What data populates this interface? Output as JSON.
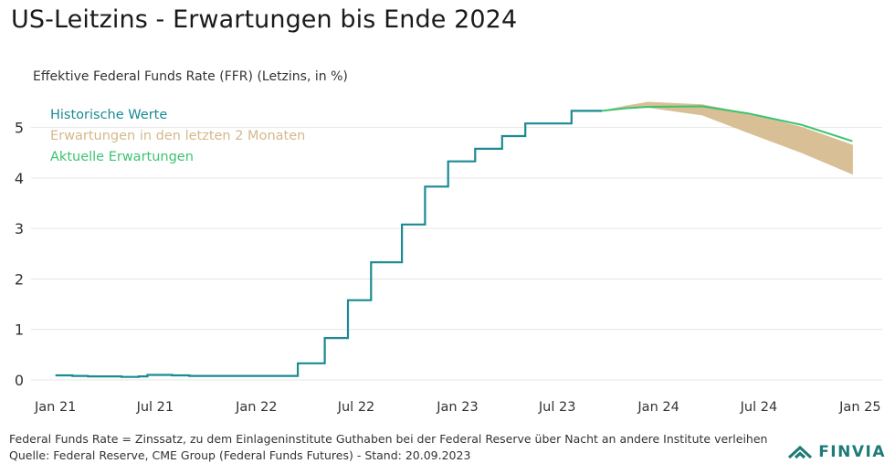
{
  "title": "US-Leitzins - Erwartungen bis Ende 2024",
  "colors": {
    "historical": "#1a8a93",
    "past_expectations": "#d4b98a",
    "current_expectations": "#3cc470",
    "grid": "#e6e6e6",
    "axis_text": "#333333",
    "logo": "#1f7a7a"
  },
  "chart_data": {
    "type": "line",
    "title": "US-Leitzins - Erwartungen bis Ende 2024",
    "ylabel": "Effektive Federal Funds Rate (FFR) (Letzins, in %)",
    "xlabel": "",
    "ylim": [
      0,
      5.5
    ],
    "xlim": [
      "2020-12-01",
      "2025-02-10"
    ],
    "yticks": [
      0,
      1,
      2,
      3,
      4,
      5
    ],
    "xticks": [
      {
        "date": "2021-01-01",
        "label": "Jan 21"
      },
      {
        "date": "2021-07-01",
        "label": "Jul 21"
      },
      {
        "date": "2022-01-01",
        "label": "Jan 22"
      },
      {
        "date": "2022-07-01",
        "label": "Jul 22"
      },
      {
        "date": "2023-01-01",
        "label": "Jan 23"
      },
      {
        "date": "2023-07-01",
        "label": "Jul 23"
      },
      {
        "date": "2024-01-01",
        "label": "Jan 24"
      },
      {
        "date": "2024-07-01",
        "label": "Jul 24"
      },
      {
        "date": "2025-01-01",
        "label": "Jan 25"
      }
    ],
    "grid": true,
    "legend_position": "top-left",
    "series": [
      {
        "name": "Historische Werte",
        "step": true,
        "points": [
          [
            "2021-01-01",
            0.09
          ],
          [
            "2021-02-01",
            0.08
          ],
          [
            "2021-03-01",
            0.07
          ],
          [
            "2021-04-01",
            0.07
          ],
          [
            "2021-05-01",
            0.06
          ],
          [
            "2021-06-01",
            0.07
          ],
          [
            "2021-06-17",
            0.1
          ],
          [
            "2021-08-01",
            0.09
          ],
          [
            "2021-09-01",
            0.08
          ],
          [
            "2021-10-01",
            0.08
          ],
          [
            "2021-11-01",
            0.08
          ],
          [
            "2021-12-01",
            0.08
          ],
          [
            "2022-01-01",
            0.08
          ],
          [
            "2022-02-01",
            0.08
          ],
          [
            "2022-03-17",
            0.33
          ],
          [
            "2022-05-05",
            0.83
          ],
          [
            "2022-06-16",
            1.58
          ],
          [
            "2022-07-28",
            2.33
          ],
          [
            "2022-09-22",
            3.08
          ],
          [
            "2022-11-03",
            3.83
          ],
          [
            "2022-12-15",
            4.33
          ],
          [
            "2023-02-02",
            4.58
          ],
          [
            "2023-03-23",
            4.83
          ],
          [
            "2023-05-04",
            5.08
          ],
          [
            "2023-07-27",
            5.33
          ],
          [
            "2023-09-20",
            5.33
          ]
        ]
      },
      {
        "name": "Erwartungen in den letzten 2 Monaten",
        "points_min": [
          [
            "2023-09-20",
            5.33
          ],
          [
            "2023-11-01",
            5.38
          ],
          [
            "2023-12-13",
            5.4
          ],
          [
            "2024-03-20",
            5.25
          ],
          [
            "2024-06-12",
            4.9
          ],
          [
            "2024-09-18",
            4.5
          ],
          [
            "2024-12-18",
            4.08
          ]
        ],
        "points_max": [
          [
            "2023-09-20",
            5.33
          ],
          [
            "2023-11-01",
            5.42
          ],
          [
            "2023-12-13",
            5.5
          ],
          [
            "2024-03-20",
            5.45
          ],
          [
            "2024-06-12",
            5.28
          ],
          [
            "2024-09-18",
            5.0
          ],
          [
            "2024-12-18",
            4.65
          ]
        ]
      },
      {
        "name": "Aktuelle Erwartungen",
        "points": [
          [
            "2023-09-20",
            5.33
          ],
          [
            "2023-11-01",
            5.38
          ],
          [
            "2023-12-13",
            5.41
          ],
          [
            "2024-03-20",
            5.42
          ],
          [
            "2024-06-12",
            5.28
          ],
          [
            "2024-09-18",
            5.05
          ],
          [
            "2024-12-18",
            4.73
          ]
        ]
      }
    ]
  },
  "footer": {
    "line1": "Federal Funds Rate = Zinssatz, zu dem Einlageninstitute Guthaben bei der Federal Reserve über Nacht an andere Institute verleihen",
    "line2": "Quelle: Federal Reserve, CME Group (Federal Funds Futures) - Stand: 20.09.2023"
  },
  "logo": {
    "text": "FINVIA",
    "icon": "finvia-chevron-icon"
  }
}
